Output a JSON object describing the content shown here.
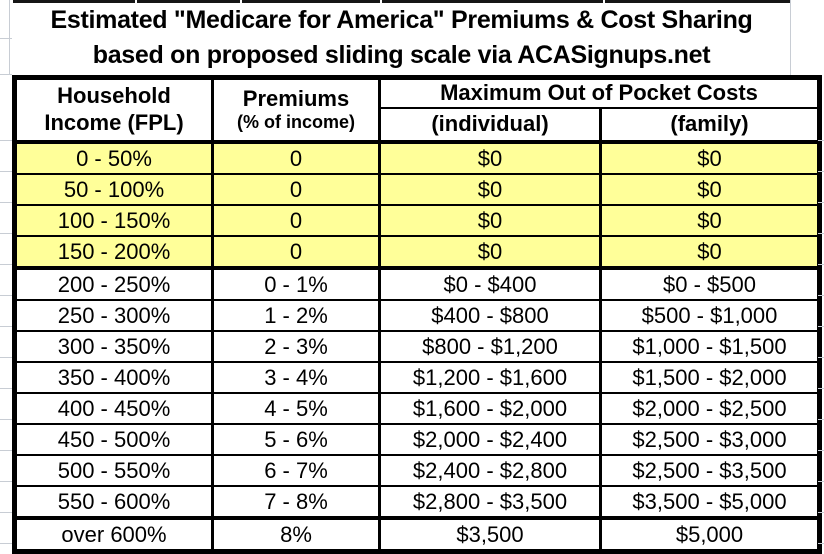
{
  "page": {
    "title_line1": "Estimated \"Medicare for America\" Premiums & Cost Sharing",
    "title_line2": "based on proposed sliding scale via ACASignups.net"
  },
  "table": {
    "headers": {
      "col1_line1": "Household",
      "col1_line2": "Income (FPL)",
      "col2_line1": "Premiums",
      "col2_line2": "(% of income)",
      "moop": "Maximum Out of Pocket Costs",
      "moop_individual": "(individual)",
      "moop_family": "(family)"
    },
    "rows": [
      {
        "income": "0 - 50%",
        "premium": "0",
        "oop_individual": "$0",
        "oop_family": "$0",
        "highlight": true,
        "separator_above": false
      },
      {
        "income": "50 - 100%",
        "premium": "0",
        "oop_individual": "$0",
        "oop_family": "$0",
        "highlight": true,
        "separator_above": false
      },
      {
        "income": "100 - 150%",
        "premium": "0",
        "oop_individual": "$0",
        "oop_family": "$0",
        "highlight": true,
        "separator_above": false
      },
      {
        "income": "150 - 200%",
        "premium": "0",
        "oop_individual": "$0",
        "oop_family": "$0",
        "highlight": true,
        "separator_above": false
      },
      {
        "income": "200 - 250%",
        "premium": "0 - 1%",
        "oop_individual": "$0 - $400",
        "oop_family": "$0 - $500",
        "highlight": false,
        "separator_above": true
      },
      {
        "income": "250 - 300%",
        "premium": "1 - 2%",
        "oop_individual": "$400 - $800",
        "oop_family": "$500 - $1,000",
        "highlight": false,
        "separator_above": false
      },
      {
        "income": "300 - 350%",
        "premium": "2 - 3%",
        "oop_individual": "$800 - $1,200",
        "oop_family": "$1,000 - $1,500",
        "highlight": false,
        "separator_above": false
      },
      {
        "income": "350 - 400%",
        "premium": "3 - 4%",
        "oop_individual": "$1,200 - $1,600",
        "oop_family": "$1,500 - $2,000",
        "highlight": false,
        "separator_above": false
      },
      {
        "income": "400 - 450%",
        "premium": "4 - 5%",
        "oop_individual": "$1,600 - $2,000",
        "oop_family": "$2,000 - $2,500",
        "highlight": false,
        "separator_above": false
      },
      {
        "income": "450 - 500%",
        "premium": "5 - 6%",
        "oop_individual": "$2,000 - $2,400",
        "oop_family": "$2,500 - $3,000",
        "highlight": false,
        "separator_above": false
      },
      {
        "income": "500 - 550%",
        "premium": "6 - 7%",
        "oop_individual": "$2,400 - $2,800",
        "oop_family": "$2,500 - $3,500",
        "highlight": false,
        "separator_above": false
      },
      {
        "income": "550 - 600%",
        "premium": "7 - 8%",
        "oop_individual": "$2,800 - $3,500",
        "oop_family": "$3,500 - $5,000",
        "highlight": false,
        "separator_above": false
      },
      {
        "income": "over 600%",
        "premium": "8%",
        "oop_individual": "$3,500",
        "oop_family": "$5,000",
        "highlight": false,
        "separator_above": true
      }
    ]
  },
  "colors": {
    "highlight_yellow": "#FFFF99",
    "border_black": "#000000",
    "gridline_gray": "#c8cdd4",
    "text": "#000000"
  },
  "chart_data": {
    "type": "table",
    "title": "Estimated \"Medicare for America\" Premiums & Cost Sharing",
    "subtitle": "based on proposed sliding scale via ACASignups.net",
    "columns": [
      "Household Income (FPL)",
      "Premiums (% of income)",
      "Maximum Out of Pocket Costs (individual)",
      "Maximum Out of Pocket Costs (family)"
    ],
    "rows": [
      [
        "0 - 50%",
        "0",
        "$0",
        "$0"
      ],
      [
        "50 - 100%",
        "0",
        "$0",
        "$0"
      ],
      [
        "100 - 150%",
        "0",
        "$0",
        "$0"
      ],
      [
        "150 - 200%",
        "0",
        "$0",
        "$0"
      ],
      [
        "200 - 250%",
        "0 - 1%",
        "$0 - $400",
        "$0 - $500"
      ],
      [
        "250 - 300%",
        "1 - 2%",
        "$400 - $800",
        "$500 - $1,000"
      ],
      [
        "300 - 350%",
        "2 - 3%",
        "$800 - $1,200",
        "$1,000 - $1,500"
      ],
      [
        "350 - 400%",
        "3 - 4%",
        "$1,200 - $1,600",
        "$1,500 - $2,000"
      ],
      [
        "400 - 450%",
        "4 - 5%",
        "$1,600 - $2,000",
        "$2,000 - $2,500"
      ],
      [
        "450 - 500%",
        "5 - 6%",
        "$2,000 - $2,400",
        "$2,500 - $3,000"
      ],
      [
        "500 - 550%",
        "6 - 7%",
        "$2,400 - $2,800",
        "$2,500 - $3,500"
      ],
      [
        "550 - 600%",
        "7 - 8%",
        "$2,800 - $3,500",
        "$3,500 - $5,000"
      ],
      [
        "over 600%",
        "8%",
        "$3,500",
        "$5,000"
      ]
    ],
    "highlighted_row_indices": [
      0,
      1,
      2,
      3
    ],
    "highlight_color": "#FFFF99",
    "grid": true,
    "legend_position": "none"
  }
}
